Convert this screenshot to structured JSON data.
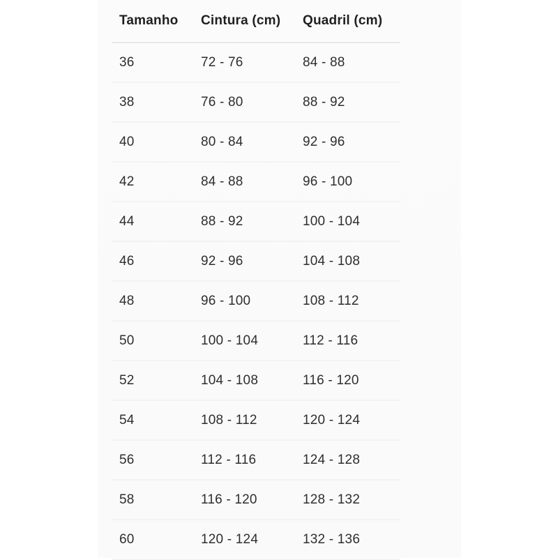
{
  "page": {
    "background": "#ffffff"
  },
  "table": {
    "title": "size-chart",
    "columns": [
      {
        "key": "size",
        "label": "Tamanho"
      },
      {
        "key": "waist",
        "label": "Cintura (cm)"
      },
      {
        "key": "hip",
        "label": "Quadril (cm)"
      }
    ],
    "rows": [
      {
        "size": "36",
        "waist": "72 - 76",
        "hip": "84 - 88"
      },
      {
        "size": "38",
        "waist": "76 - 80",
        "hip": "88 - 92"
      },
      {
        "size": "40",
        "waist": "80 - 84",
        "hip": "92 - 96"
      },
      {
        "size": "42",
        "waist": "84 - 88",
        "hip": "96 - 100"
      },
      {
        "size": "44",
        "waist": "88 - 92",
        "hip": "100 - 104"
      },
      {
        "size": "46",
        "waist": "92 - 96",
        "hip": "104 - 108"
      },
      {
        "size": "48",
        "waist": "96 - 100",
        "hip": "108 - 112"
      },
      {
        "size": "50",
        "waist": "100 - 104",
        "hip": "112 - 116"
      },
      {
        "size": "52",
        "waist": "104 - 108",
        "hip": "116 - 120"
      },
      {
        "size": "54",
        "waist": "108 - 112",
        "hip": "120 - 124"
      },
      {
        "size": "56",
        "waist": "112 - 116",
        "hip": "124 - 128"
      },
      {
        "size": "58",
        "waist": "116 - 120",
        "hip": "128 - 132"
      },
      {
        "size": "60",
        "waist": "120 - 124",
        "hip": "132 - 136"
      }
    ],
    "colors": {
      "text": "#2e2e2e",
      "header_text": "#1f1f1f",
      "header_divider": "#e8e8e8",
      "row_divider": "#f3f3f3"
    }
  }
}
